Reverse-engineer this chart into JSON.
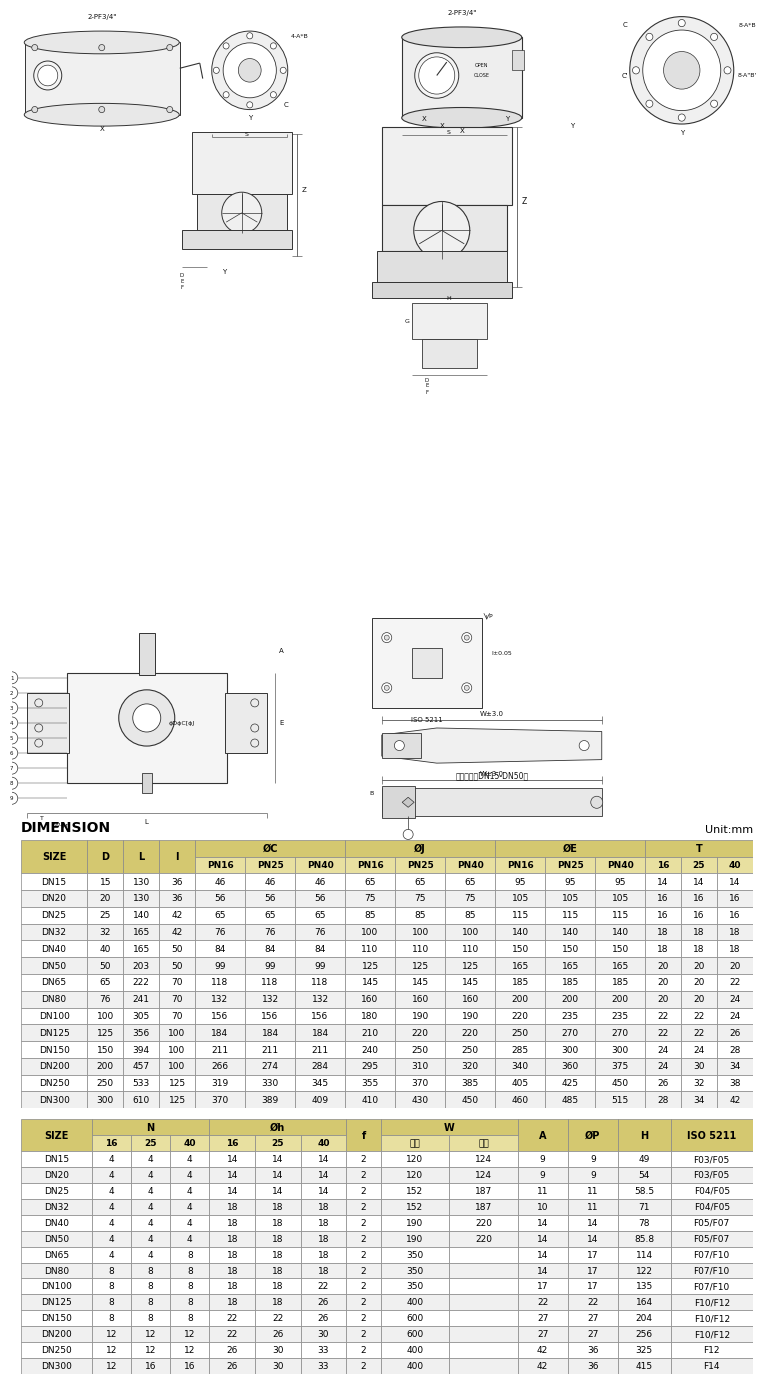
{
  "title": "DIMENSION",
  "unit": "Unit:mm",
  "bg_color": "#ffffff",
  "table_header_color": "#e8e0a0",
  "header_bg": "#d4c870",
  "table1_data": [
    [
      "DN15",
      "15",
      "130",
      "36",
      "46",
      "46",
      "46",
      "65",
      "65",
      "65",
      "95",
      "95",
      "95",
      "14",
      "14",
      "14"
    ],
    [
      "DN20",
      "20",
      "130",
      "36",
      "56",
      "56",
      "56",
      "75",
      "75",
      "75",
      "105",
      "105",
      "105",
      "16",
      "16",
      "16"
    ],
    [
      "DN25",
      "25",
      "140",
      "42",
      "65",
      "65",
      "65",
      "85",
      "85",
      "85",
      "115",
      "115",
      "115",
      "16",
      "16",
      "16"
    ],
    [
      "DN32",
      "32",
      "165",
      "42",
      "76",
      "76",
      "76",
      "100",
      "100",
      "100",
      "140",
      "140",
      "140",
      "18",
      "18",
      "18"
    ],
    [
      "DN40",
      "40",
      "165",
      "50",
      "84",
      "84",
      "84",
      "110",
      "110",
      "110",
      "150",
      "150",
      "150",
      "18",
      "18",
      "18"
    ],
    [
      "DN50",
      "50",
      "203",
      "50",
      "99",
      "99",
      "99",
      "125",
      "125",
      "125",
      "165",
      "165",
      "165",
      "20",
      "20",
      "20"
    ],
    [
      "DN65",
      "65",
      "222",
      "70",
      "118",
      "118",
      "118",
      "145",
      "145",
      "145",
      "185",
      "185",
      "185",
      "20",
      "20",
      "22"
    ],
    [
      "DN80",
      "76",
      "241",
      "70",
      "132",
      "132",
      "132",
      "160",
      "160",
      "160",
      "200",
      "200",
      "200",
      "20",
      "20",
      "24"
    ],
    [
      "DN100",
      "100",
      "305",
      "70",
      "156",
      "156",
      "156",
      "180",
      "190",
      "190",
      "220",
      "235",
      "235",
      "22",
      "22",
      "24"
    ],
    [
      "DN125",
      "125",
      "356",
      "100",
      "184",
      "184",
      "184",
      "210",
      "220",
      "220",
      "250",
      "270",
      "270",
      "22",
      "22",
      "26"
    ],
    [
      "DN150",
      "150",
      "394",
      "100",
      "211",
      "211",
      "211",
      "240",
      "250",
      "250",
      "285",
      "300",
      "300",
      "24",
      "24",
      "28"
    ],
    [
      "DN200",
      "200",
      "457",
      "100",
      "266",
      "274",
      "284",
      "295",
      "310",
      "320",
      "340",
      "360",
      "375",
      "24",
      "30",
      "34"
    ],
    [
      "DN250",
      "250",
      "533",
      "125",
      "319",
      "330",
      "345",
      "355",
      "370",
      "385",
      "405",
      "425",
      "450",
      "26",
      "32",
      "38"
    ],
    [
      "DN300",
      "300",
      "610",
      "125",
      "370",
      "389",
      "409",
      "410",
      "430",
      "450",
      "460",
      "485",
      "515",
      "28",
      "34",
      "42"
    ]
  ],
  "table2_data": [
    [
      "DN15",
      "4",
      "4",
      "4",
      "14",
      "14",
      "14",
      "2",
      "120",
      "124",
      "9",
      "9",
      "49",
      "F03/F05"
    ],
    [
      "DN20",
      "4",
      "4",
      "4",
      "14",
      "14",
      "14",
      "2",
      "120",
      "124",
      "9",
      "9",
      "54",
      "F03/F05"
    ],
    [
      "DN25",
      "4",
      "4",
      "4",
      "14",
      "14",
      "14",
      "2",
      "152",
      "187",
      "11",
      "11",
      "58.5",
      "F04/F05"
    ],
    [
      "DN32",
      "4",
      "4",
      "4",
      "18",
      "18",
      "18",
      "2",
      "152",
      "187",
      "10",
      "11",
      "71",
      "F04/F05"
    ],
    [
      "DN40",
      "4",
      "4",
      "4",
      "18",
      "18",
      "18",
      "2",
      "190",
      "220",
      "14",
      "14",
      "78",
      "F05/F07"
    ],
    [
      "DN50",
      "4",
      "4",
      "4",
      "18",
      "18",
      "18",
      "2",
      "190",
      "220",
      "14",
      "14",
      "85.8",
      "F05/F07"
    ],
    [
      "DN65",
      "4",
      "4",
      "8",
      "18",
      "18",
      "18",
      "2",
      "350",
      "",
      "14",
      "17",
      "114",
      "F07/F10"
    ],
    [
      "DN80",
      "8",
      "8",
      "8",
      "18",
      "18",
      "18",
      "2",
      "350",
      "",
      "14",
      "17",
      "122",
      "F07/F10"
    ],
    [
      "DN100",
      "8",
      "8",
      "8",
      "18",
      "18",
      "22",
      "2",
      "350",
      "",
      "17",
      "17",
      "135",
      "F07/F10"
    ],
    [
      "DN125",
      "8",
      "8",
      "8",
      "18",
      "18",
      "26",
      "2",
      "400",
      "",
      "22",
      "22",
      "164",
      "F10/F12"
    ],
    [
      "DN150",
      "8",
      "8",
      "8",
      "22",
      "22",
      "26",
      "2",
      "600",
      "",
      "27",
      "27",
      "204",
      "F10/F12"
    ],
    [
      "DN200",
      "12",
      "12",
      "12",
      "22",
      "26",
      "30",
      "2",
      "600",
      "",
      "27",
      "27",
      "256",
      "F10/F12"
    ],
    [
      "DN250",
      "12",
      "12",
      "12",
      "26",
      "30",
      "33",
      "2",
      "400",
      "",
      "42",
      "36",
      "325",
      "F12"
    ],
    [
      "DN300",
      "12",
      "16",
      "16",
      "26",
      "30",
      "33",
      "2",
      "400",
      "",
      "42",
      "36",
      "415",
      "F14"
    ]
  ]
}
